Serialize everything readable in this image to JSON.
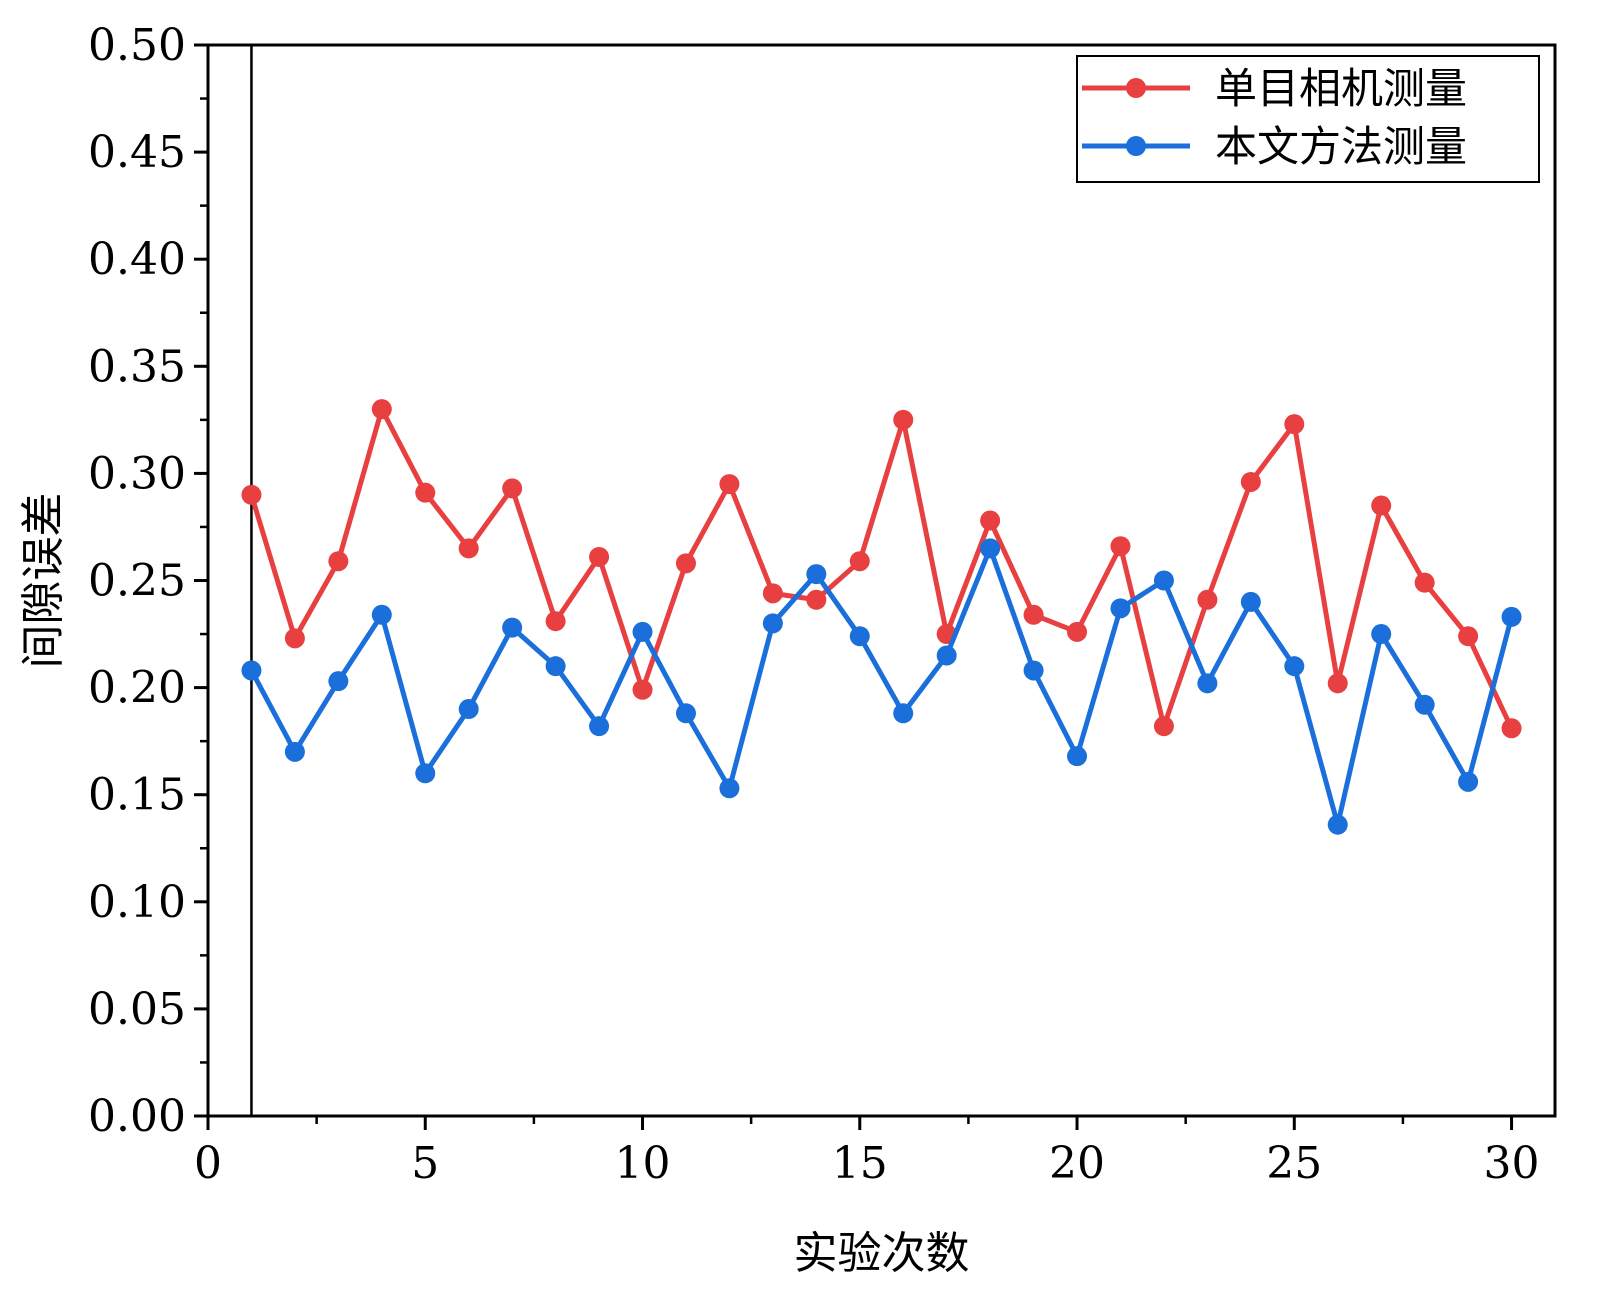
{
  "chart_data": {
    "type": "line",
    "xlabel": "实验次数",
    "ylabel": "间隙误差",
    "xlim": [
      0,
      31
    ],
    "ylim": [
      0.0,
      0.5
    ],
    "x_ticks": [
      "0",
      "5",
      "10",
      "15",
      "20",
      "25",
      "30"
    ],
    "y_ticks": [
      "0.00",
      "0.05",
      "0.10",
      "0.15",
      "0.20",
      "0.25",
      "0.30",
      "0.35",
      "0.40",
      "0.45",
      "0.50"
    ],
    "x": [
      1,
      2,
      3,
      4,
      5,
      6,
      7,
      8,
      9,
      10,
      11,
      12,
      13,
      14,
      15,
      16,
      17,
      18,
      19,
      20,
      21,
      22,
      23,
      24,
      25,
      26,
      27,
      28,
      29,
      30
    ],
    "series": [
      {
        "name": "单目相机测量",
        "color": "#e84040",
        "values": [
          0.29,
          0.223,
          0.259,
          0.33,
          0.291,
          0.265,
          0.293,
          0.231,
          0.261,
          0.199,
          0.258,
          0.295,
          0.244,
          0.241,
          0.259,
          0.325,
          0.225,
          0.278,
          0.234,
          0.226,
          0.266,
          0.182,
          0.241,
          0.296,
          0.323,
          0.202,
          0.285,
          0.249,
          0.224,
          0.181
        ]
      },
      {
        "name": "本文方法测量",
        "color": "#1a6fdb",
        "values": [
          0.208,
          0.17,
          0.203,
          0.234,
          0.16,
          0.19,
          0.228,
          0.21,
          0.182,
          0.226,
          0.188,
          0.153,
          0.23,
          0.253,
          0.224,
          0.188,
          0.215,
          0.265,
          0.208,
          0.168,
          0.237,
          0.25,
          0.202,
          0.24,
          0.21,
          0.136,
          0.225,
          0.192,
          0.156,
          0.233
        ]
      }
    ],
    "legend_position": "top-right",
    "grid": false
  }
}
